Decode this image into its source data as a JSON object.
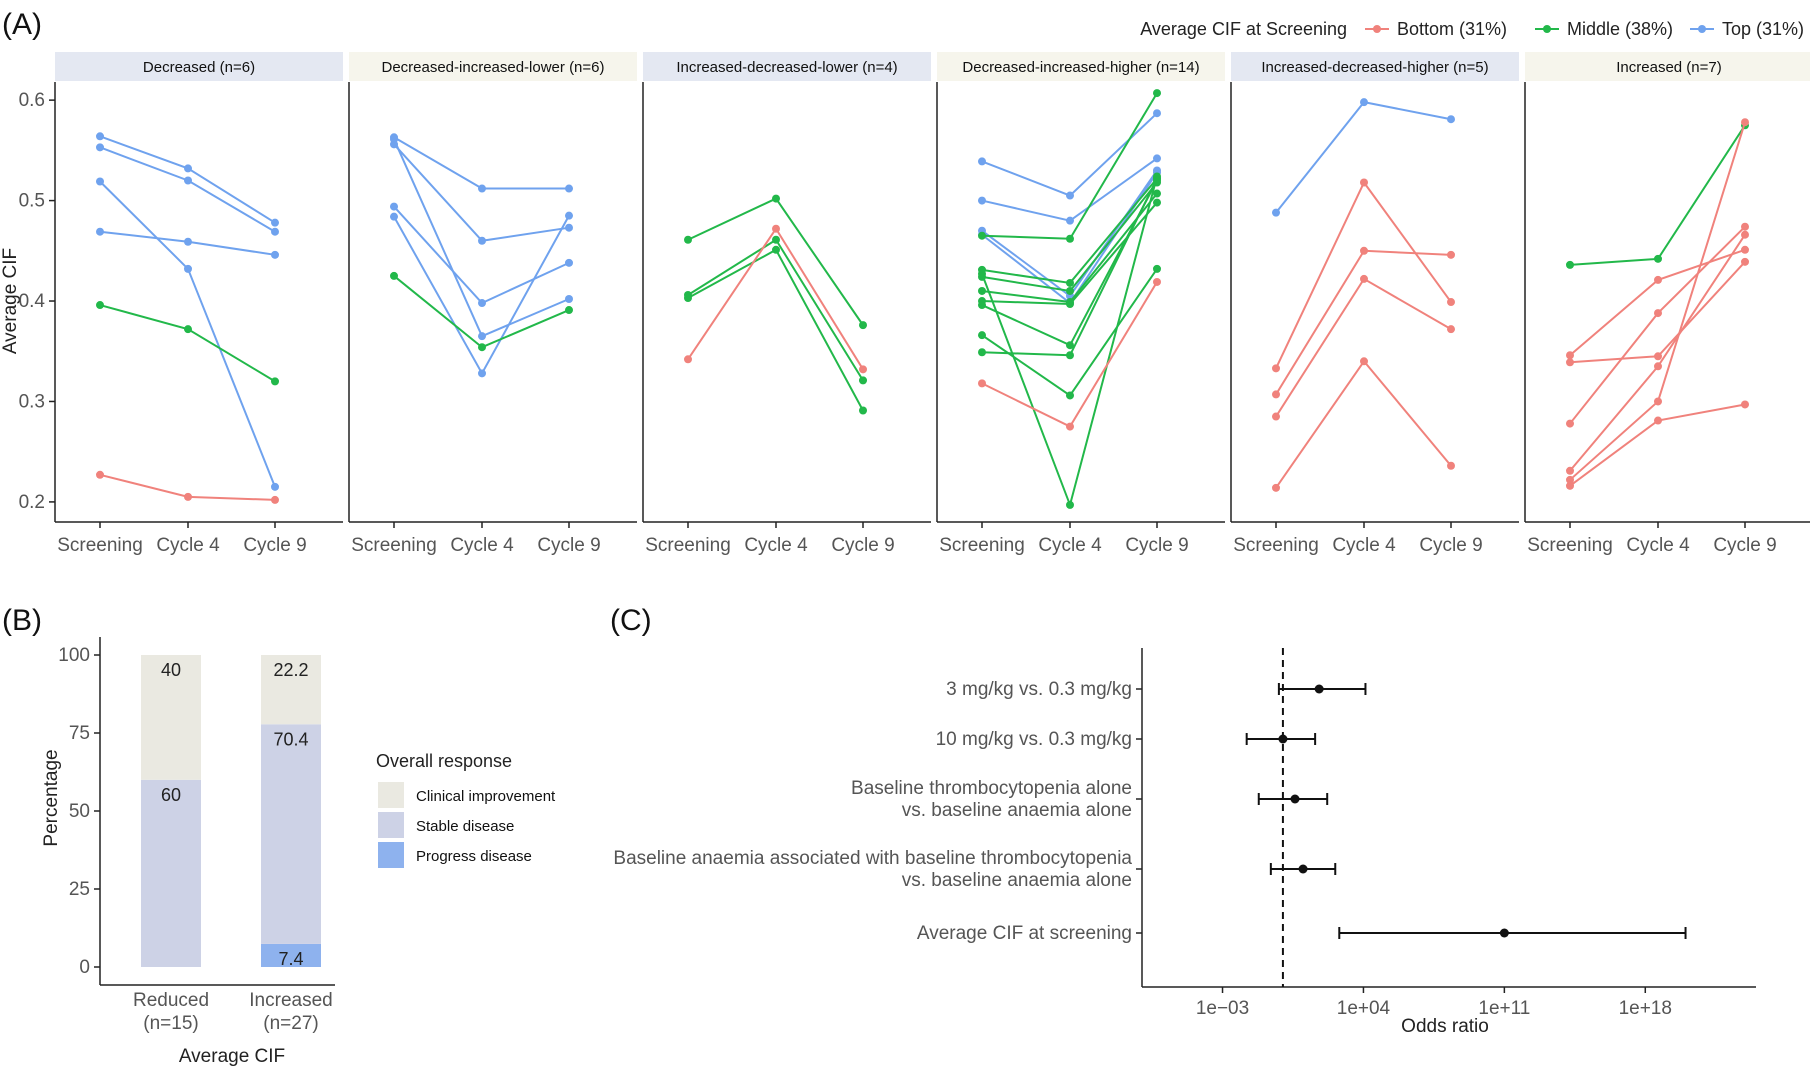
{
  "panel_letters": {
    "a": "(A)",
    "b": "(B)",
    "c": "(C)"
  },
  "colors": {
    "bottom": "#F0827C",
    "middle": "#22B84A",
    "top": "#6FA2EE",
    "strip_blue": "#E4E8F2",
    "strip_beige": "#F6F5EC",
    "clinical_improvement": "#EAE9E1",
    "stable_disease": "#CDD2E6",
    "progress_disease": "#8EB2EE"
  },
  "chart_data": [
    {
      "id": "A",
      "type": "line",
      "ylabel": "Average CIF",
      "ylim": [
        0.18,
        0.63
      ],
      "y_ticks": [
        "0.2",
        "0.3",
        "0.4",
        "0.5",
        "0.6"
      ],
      "x": [
        "Screening",
        "Cycle 4",
        "Cycle 9"
      ],
      "legend": {
        "title": "Average CIF at Screening",
        "placement": "top-right",
        "items": [
          {
            "key": "bottom",
            "label": "Bottom (31%)"
          },
          {
            "key": "middle",
            "label": "Middle (38%)"
          },
          {
            "key": "top",
            "label": "Top (31%)"
          }
        ]
      },
      "facets": [
        {
          "label": "Decreased (n=6)",
          "strip": "blue",
          "lines": [
            {
              "group": "top",
              "y": [
                0.564,
                0.532,
                0.478
              ]
            },
            {
              "group": "top",
              "y": [
                0.553,
                0.52,
                0.469
              ]
            },
            {
              "group": "top",
              "y": [
                0.519,
                0.432,
                0.215
              ]
            },
            {
              "group": "top",
              "y": [
                0.469,
                0.459,
                0.446
              ]
            },
            {
              "group": "middle",
              "y": [
                0.396,
                0.372,
                0.32
              ]
            },
            {
              "group": "bottom",
              "y": [
                0.227,
                0.205,
                0.202
              ]
            }
          ]
        },
        {
          "label": "Decreased-increased-lower (n=6)",
          "strip": "beige",
          "lines": [
            {
              "group": "top",
              "y": [
                0.563,
                0.512,
                0.512
              ]
            },
            {
              "group": "top",
              "y": [
                0.556,
                0.46,
                0.473
              ]
            },
            {
              "group": "top",
              "y": [
                0.494,
                0.398,
                0.438
              ]
            },
            {
              "group": "top",
              "y": [
                0.484,
                0.328,
                0.485
              ]
            },
            {
              "group": "top",
              "y": [
                0.561,
                0.365,
                0.402
              ]
            },
            {
              "group": "middle",
              "y": [
                0.425,
                0.354,
                0.391
              ]
            }
          ]
        },
        {
          "label": "Increased-decreased-lower (n=4)",
          "strip": "blue",
          "lines": [
            {
              "group": "middle",
              "y": [
                0.461,
                0.502,
                0.376
              ]
            },
            {
              "group": "middle",
              "y": [
                0.406,
                0.461,
                0.321
              ]
            },
            {
              "group": "middle",
              "y": [
                0.403,
                0.451,
                0.291
              ]
            },
            {
              "group": "bottom",
              "y": [
                0.342,
                0.472,
                0.332
              ]
            }
          ]
        },
        {
          "label": "Decreased-increased-higher (n=14)",
          "strip": "beige",
          "lines": [
            {
              "group": "top",
              "y": [
                0.539,
                0.505,
                0.587
              ]
            },
            {
              "group": "top",
              "y": [
                0.5,
                0.48,
                0.542
              ]
            },
            {
              "group": "top",
              "y": [
                0.47,
                0.405,
                0.53
              ]
            },
            {
              "group": "top",
              "y": [
                0.466,
                0.398,
                0.528
              ]
            },
            {
              "group": "middle",
              "y": [
                0.465,
                0.462,
                0.607
              ]
            },
            {
              "group": "middle",
              "y": [
                0.431,
                0.418,
                0.522
              ]
            },
            {
              "group": "middle",
              "y": [
                0.424,
                0.41,
                0.518
              ]
            },
            {
              "group": "middle",
              "y": [
                0.41,
                0.399,
                0.507
              ]
            },
            {
              "group": "middle",
              "y": [
                0.4,
                0.397,
                0.498
              ]
            },
            {
              "group": "middle",
              "y": [
                0.396,
                0.356,
                0.52
              ]
            },
            {
              "group": "middle",
              "y": [
                0.366,
                0.306,
                0.432
              ]
            },
            {
              "group": "middle",
              "y": [
                0.349,
                0.346,
                0.522
              ]
            },
            {
              "group": "middle",
              "y": [
                0.427,
                0.197,
                0.524
              ]
            },
            {
              "group": "bottom",
              "y": [
                0.318,
                0.275,
                0.419
              ]
            }
          ]
        },
        {
          "label": "Increased-decreased-higher (n=5)",
          "strip": "blue",
          "lines": [
            {
              "group": "top",
              "y": [
                0.488,
                0.598,
                0.581
              ]
            },
            {
              "group": "bottom",
              "y": [
                0.333,
                0.518,
                0.399
              ]
            },
            {
              "group": "bottom",
              "y": [
                0.307,
                0.45,
                0.446
              ]
            },
            {
              "group": "bottom",
              "y": [
                0.285,
                0.422,
                0.372
              ]
            },
            {
              "group": "bottom",
              "y": [
                0.214,
                0.34,
                0.236
              ]
            }
          ]
        },
        {
          "label": "Increased (n=7)",
          "strip": "beige",
          "lines": [
            {
              "group": "middle",
              "y": [
                0.436,
                0.442,
                0.575
              ]
            },
            {
              "group": "bottom",
              "y": [
                0.346,
                0.421,
                0.451
              ]
            },
            {
              "group": "bottom",
              "y": [
                0.339,
                0.345,
                0.439
              ]
            },
            {
              "group": "bottom",
              "y": [
                0.278,
                0.388,
                0.474
              ]
            },
            {
              "group": "bottom",
              "y": [
                0.231,
                0.335,
                0.466
              ]
            },
            {
              "group": "bottom",
              "y": [
                0.222,
                0.3,
                0.578
              ]
            },
            {
              "group": "bottom",
              "y": [
                0.216,
                0.281,
                0.297
              ]
            }
          ]
        }
      ]
    },
    {
      "id": "B",
      "type": "bar",
      "stacked": true,
      "xlabel": "Average CIF",
      "ylabel": "Percentage",
      "ylim": [
        0,
        100
      ],
      "y_ticks": [
        "0",
        "25",
        "50",
        "75",
        "100"
      ],
      "categories": [
        {
          "line1": "Reduced",
          "line2": "(n=15)"
        },
        {
          "line1": "Increased",
          "line2": "(n=27)"
        }
      ],
      "series": [
        {
          "key": "progress_disease",
          "name": "Progress disease",
          "values": [
            0,
            7.4
          ],
          "labels": [
            "",
            "7.4"
          ]
        },
        {
          "key": "stable_disease",
          "name": "Stable disease",
          "values": [
            60,
            70.4
          ],
          "labels": [
            "60",
            "70.4"
          ]
        },
        {
          "key": "clinical_improvement",
          "name": "Clinical improvement",
          "values": [
            40,
            22.2
          ],
          "labels": [
            "40",
            "22.2"
          ]
        }
      ],
      "legend": {
        "title": "Overall response",
        "placement": "right",
        "items": [
          "Clinical improvement",
          "Stable disease",
          "Progress disease"
        ]
      }
    },
    {
      "id": "C",
      "type": "scatter",
      "subtype": "forest-plot",
      "xlabel": "Odds ratio",
      "x_scale": "log10",
      "xlim_log10": [
        -7,
        23.5
      ],
      "x_ticks": [
        {
          "label": "1e−03",
          "log10": -3
        },
        {
          "label": "1e+04",
          "log10": 4
        },
        {
          "label": "1e+11",
          "log10": 11
        },
        {
          "label": "1e+18",
          "log10": 18
        }
      ],
      "reference_line_log10": 0,
      "rows": [
        {
          "line1": "3 mg/kg vs. 0.3 mg/kg",
          "line2": "",
          "or_log10": 1.8,
          "lo_log10": -0.2,
          "hi_log10": 4.1
        },
        {
          "line1": "10 mg/kg vs. 0.3 mg/kg",
          "line2": "",
          "or_log10": 0.0,
          "lo_log10": -1.8,
          "hi_log10": 1.6
        },
        {
          "line1": "Baseline thrombocytopenia alone",
          "line2": "vs. baseline anaemia alone",
          "or_log10": 0.6,
          "lo_log10": -1.2,
          "hi_log10": 2.2
        },
        {
          "line1": "Baseline anaemia associated with baseline thrombocytopenia",
          "line2": "vs. baseline anaemia alone",
          "or_log10": 1.0,
          "lo_log10": -0.6,
          "hi_log10": 2.6
        },
        {
          "line1": "Average CIF at screening",
          "line2": "",
          "or_log10": 11.0,
          "lo_log10": 2.8,
          "hi_log10": 20.0
        }
      ]
    }
  ]
}
